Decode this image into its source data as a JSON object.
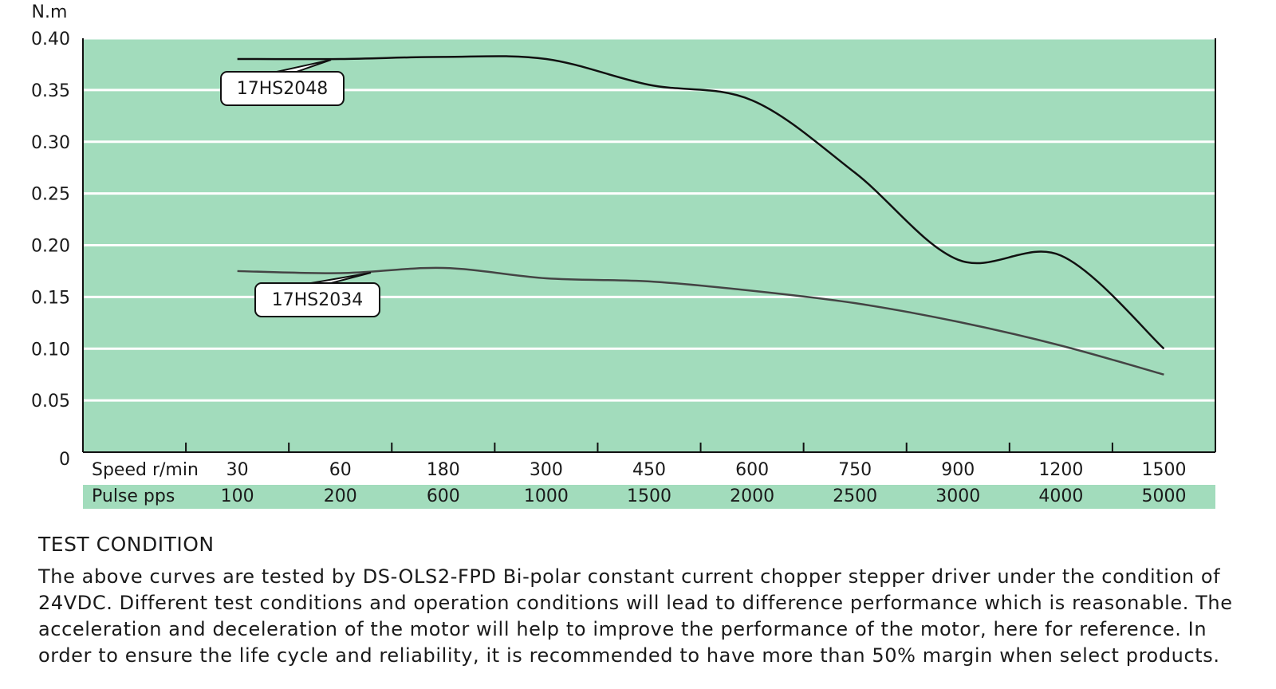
{
  "chart_data": {
    "type": "line",
    "y_label": "N.m",
    "x_label": "Speed r/min",
    "x2_label": "Pulse pps",
    "categories": [
      "30",
      "60",
      "180",
      "300",
      "450",
      "600",
      "750",
      "900",
      "1200",
      "1500"
    ],
    "pulse_categories": [
      "100",
      "200",
      "600",
      "1000",
      "1500",
      "2000",
      "2500",
      "3000",
      "4000",
      "5000"
    ],
    "series": [
      {
        "name": "17HS2048",
        "color": "#111111",
        "values": [
          0.38,
          0.38,
          0.382,
          0.38,
          0.355,
          0.34,
          0.27,
          0.186,
          0.19,
          0.1
        ]
      },
      {
        "name": "17HS2034",
        "color": "#444444",
        "values": [
          0.175,
          0.173,
          0.178,
          0.168,
          0.165,
          0.156,
          0.144,
          0.126,
          0.103,
          0.075
        ]
      }
    ],
    "ylim": [
      0,
      0.4
    ],
    "yticks": [
      0,
      0.05,
      {
        "value": 0.1,
        "label": "0.10"
      },
      0.15,
      {
        "value": 0.2,
        "label": "0.20"
      },
      0.25,
      {
        "value": 0.3,
        "label": "0.30"
      },
      0.35,
      {
        "value": 0.4,
        "label": "0.40"
      }
    ],
    "grid": true,
    "plot_color": "#a2dcbc"
  },
  "notes": {
    "title": "TEST CONDITION",
    "text": "The above curves are tested by DS-OLS2-FPD Bi-polar constant current chopper stepper driver under the condition of 24VDC. Different test conditions and operation conditions will lead to difference performance which is reasonable. The acceleration and deceleration of the motor will help to improve the performance of the motor, here for reference. In order to ensure the life cycle and reliability, it is recommended to have more than 50% margin when select products."
  }
}
